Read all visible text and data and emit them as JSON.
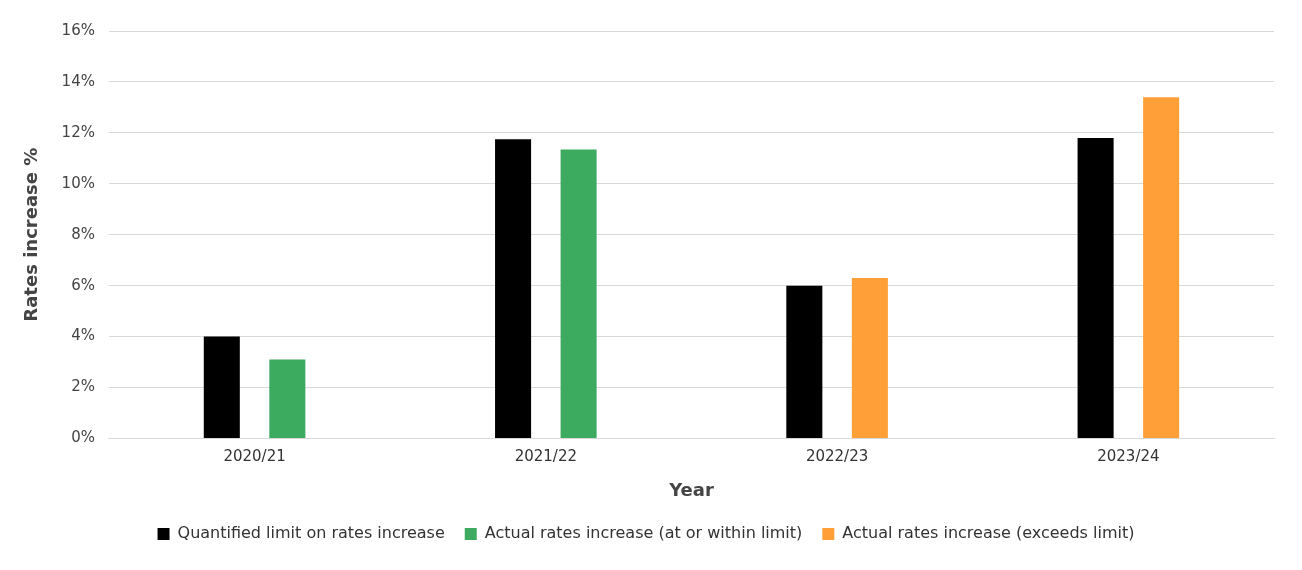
{
  "chart_data": {
    "type": "bar",
    "xlabel": "Year",
    "ylabel": "Rates increase %",
    "categories": [
      "2020/21",
      "2021/22",
      "2022/23",
      "2023/24"
    ],
    "series": [
      {
        "name": "Quantified limit on rates increase",
        "color": "#000000",
        "values": [
          4.0,
          11.75,
          6.0,
          11.8
        ]
      },
      {
        "name": "Actual rates increase (at or within limit)",
        "color": "#3caa5f",
        "values": [
          3.1,
          11.35,
          null,
          null
        ]
      },
      {
        "name": "Actual rates increase (exceeds limit)",
        "color": "#ff9f38",
        "values": [
          null,
          null,
          6.3,
          13.4
        ]
      }
    ],
    "ylim": [
      0,
      16
    ],
    "yticks": [
      {
        "value": 0,
        "label": "0%"
      },
      {
        "value": 2,
        "label": "2%"
      },
      {
        "value": 4,
        "label": "4%"
      },
      {
        "value": 6,
        "label": "6%"
      },
      {
        "value": 8,
        "label": "8%"
      },
      {
        "value": 10,
        "label": "10%"
      },
      {
        "value": 12,
        "label": "12%"
      },
      {
        "value": 14,
        "label": "14%"
      },
      {
        "value": 16,
        "label": "16%"
      }
    ],
    "grid": "y",
    "legend": "bottom"
  }
}
